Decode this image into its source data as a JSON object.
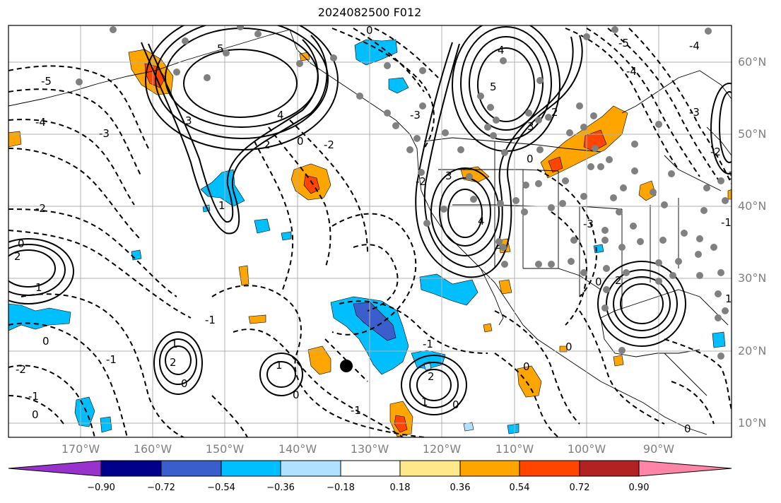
{
  "title": "2024082500 F012",
  "map": {
    "lon_range": [
      -180,
      -80
    ],
    "lat_range": [
      7,
      65
    ],
    "lat_labels": [
      "60°N",
      "50°N",
      "40°N",
      "30°N",
      "20°N",
      "10°N"
    ],
    "lon_labels": [
      "170°W",
      "160°W",
      "150°W",
      "140°W",
      "130°W",
      "120°W",
      "110°W",
      "100°W",
      "90°W"
    ],
    "grid": true
  },
  "contour_labels": [
    "5",
    "4",
    "3",
    "2",
    "1",
    "0",
    "-1",
    "-2",
    "-3",
    "-4",
    "-5"
  ],
  "colorbar": {
    "ticks": [
      "−0.90",
      "−0.72",
      "−0.54",
      "−0.36",
      "−0.18",
      "0.18",
      "0.36",
      "0.54",
      "0.72",
      "0.90"
    ],
    "colors": [
      "#9932cc",
      "#00008b",
      "#3a5fcd",
      "#00bfff",
      "#b0e2ff",
      "#ffffff",
      "#ffe88a",
      "#ffa500",
      "#ff4500",
      "#b22222",
      "#ff85a6"
    ],
    "extend": "both"
  },
  "legend_placement": "bottom"
}
